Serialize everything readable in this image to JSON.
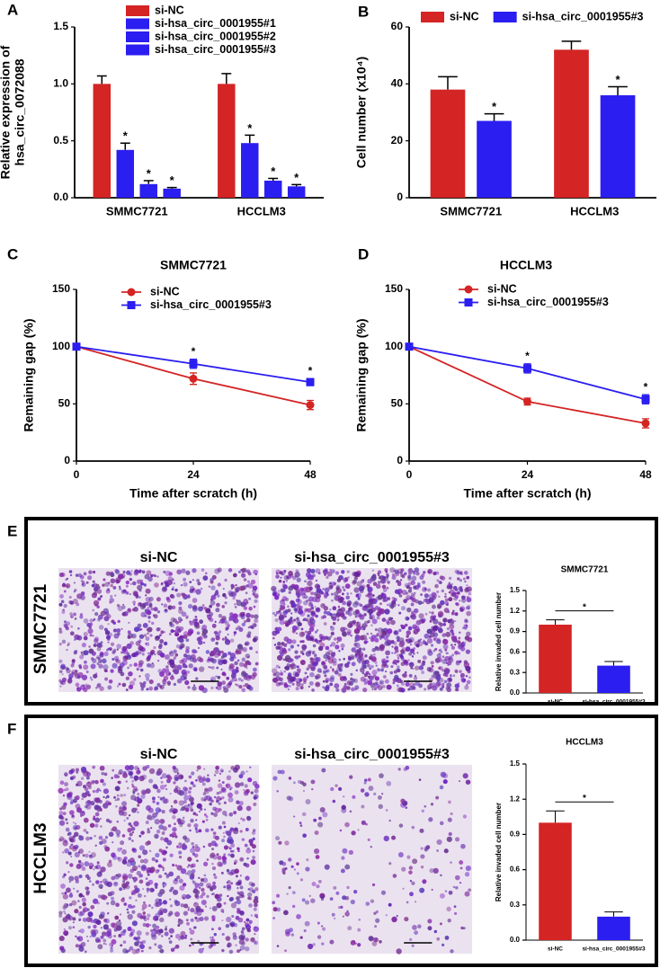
{
  "chart_data": [
    {
      "type": "bar",
      "panel": "A",
      "ylabel": [
        "Relative expression of",
        "hsa_circ_0072088"
      ],
      "categories": [
        "SMMC7721",
        "HCCLM3"
      ],
      "series": [
        {
          "name": "si-NC",
          "color": "#d42424",
          "values": [
            1.0,
            1.0
          ],
          "errors": [
            0.07,
            0.09
          ]
        },
        {
          "name": "si-hsa_circ_0001955#1",
          "color": "#2b1ef0",
          "values": [
            0.42,
            0.48
          ],
          "errors": [
            0.06,
            0.07
          ],
          "annotations": [
            "*",
            "*"
          ]
        },
        {
          "name": "si-hsa_circ_0001955#2",
          "color": "#2b1ef0",
          "values": [
            0.12,
            0.15
          ],
          "errors": [
            0.03,
            0.02
          ],
          "annotations": [
            "*",
            "*"
          ]
        },
        {
          "name": "si-hsa_circ_0001955#3",
          "color": "#2b1ef0",
          "values": [
            0.08,
            0.1
          ],
          "errors": [
            0.01,
            0.015
          ],
          "annotations": [
            "*",
            "*"
          ]
        }
      ],
      "ylim": [
        0,
        1.5
      ],
      "yticks": [
        {
          "value": 0,
          "label": "0.0"
        },
        0.5,
        {
          "value": 1,
          "label": "1.0"
        },
        1.5
      ]
    },
    {
      "type": "bar",
      "panel": "B",
      "ylabel": [
        "Cell number (x10⁴)"
      ],
      "categories": [
        "SMMC7721",
        "HCCLM3"
      ],
      "series": [
        {
          "name": "si-NC",
          "color": "#d42424",
          "values": [
            38,
            52
          ],
          "errors": [
            4.5,
            3
          ]
        },
        {
          "name": "si-hsa_circ_0001955#3",
          "color": "#2b1ef0",
          "values": [
            27,
            36
          ],
          "errors": [
            2.5,
            3
          ],
          "annotations": [
            "*",
            "*"
          ]
        }
      ],
      "ylim": [
        0,
        60
      ],
      "yticks": [
        0,
        20,
        40,
        60
      ]
    },
    {
      "type": "line",
      "panel": "C",
      "title": "SMMC7721",
      "xlabel": "Time after scratch (h)",
      "ylabel": [
        "Remaining gap (%)"
      ],
      "x": [
        0,
        24,
        48
      ],
      "xlim": [
        0,
        48
      ],
      "xticks": [
        0,
        24,
        48
      ],
      "series": [
        {
          "name": "si-NC",
          "color": "#d42424",
          "marker": "circle",
          "values": [
            100,
            72,
            49
          ],
          "errors": [
            0,
            5,
            4
          ]
        },
        {
          "name": "si-hsa_circ_0001955#3",
          "color": "#2b1ef0",
          "marker": "square",
          "values": [
            100,
            85,
            69
          ],
          "errors": [
            0,
            4,
            3
          ],
          "annotations": [
            null,
            "*",
            "*"
          ]
        }
      ],
      "ylim": [
        0,
        150
      ],
      "yticks": [
        0,
        50,
        100,
        150
      ]
    },
    {
      "type": "line",
      "panel": "D",
      "title": "HCCLM3",
      "xlabel": "Time after scratch (h)",
      "ylabel": [
        "Remaining gap (%)"
      ],
      "x": [
        0,
        24,
        48
      ],
      "xlim": [
        0,
        48
      ],
      "xticks": [
        0,
        24,
        48
      ],
      "series": [
        {
          "name": "si-NC",
          "color": "#d42424",
          "marker": "circle",
          "values": [
            100,
            52,
            33
          ],
          "errors": [
            0,
            3,
            4
          ]
        },
        {
          "name": "si-hsa_circ_0001955#3",
          "color": "#2b1ef0",
          "marker": "square",
          "values": [
            100,
            81,
            54
          ],
          "errors": [
            0,
            4,
            4
          ],
          "annotations": [
            null,
            "*",
            "*"
          ]
        }
      ],
      "ylim": [
        0,
        150
      ],
      "yticks": [
        0,
        50,
        100,
        150
      ]
    },
    {
      "type": "bar",
      "panel": "E",
      "title": "SMMC7721",
      "row_label": "SMMC7721",
      "images": [
        "si-NC",
        "si-hsa_circ_0001955#3"
      ],
      "ylabel": [
        "Relative invaded cell number"
      ],
      "categories": [
        "si-NC",
        "si-hsa_circ_0001955#3"
      ],
      "values": [
        1.0,
        0.4
      ],
      "errors": [
        0.07,
        0.06
      ],
      "colors": [
        "#d42424",
        "#2b1ef0"
      ],
      "significance": "*",
      "ylim": [
        0,
        1.5
      ],
      "yticks": [
        {
          "value": 0,
          "label": "0.0"
        },
        0.3,
        0.6,
        0.9,
        1.2,
        1.5
      ]
    },
    {
      "type": "bar",
      "panel": "F",
      "title": "HCCLM3",
      "row_label": "HCCLM3",
      "images": [
        "si-NC",
        "si-hsa_circ_0001955#3"
      ],
      "ylabel": [
        "Relative invaded cell number"
      ],
      "categories": [
        "si-NC",
        "si-hsa_circ_0001955#3"
      ],
      "values": [
        1.0,
        0.2
      ],
      "errors": [
        0.1,
        0.04
      ],
      "colors": [
        "#d42424",
        "#2b1ef0"
      ],
      "significance": "*",
      "ylim": [
        0,
        1.5
      ],
      "yticks": [
        {
          "value": 0,
          "label": "0.0"
        },
        0.3,
        0.6,
        0.9,
        1.2,
        1.5
      ]
    }
  ]
}
